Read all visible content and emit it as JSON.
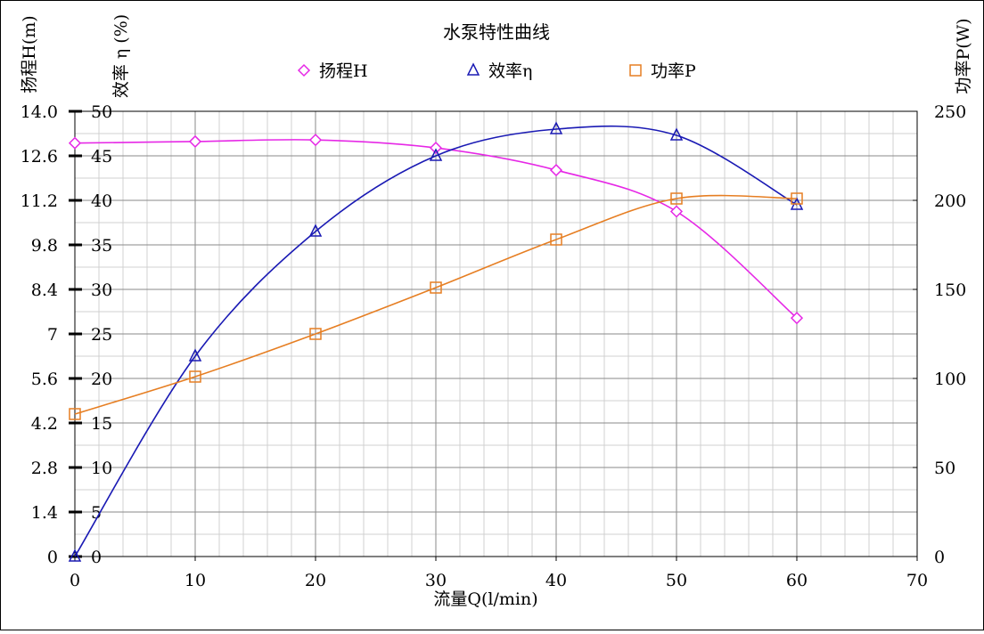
{
  "chart_data": {
    "type": "line",
    "title": "水泵特性曲线",
    "xlabel": "流量Q(l/min)",
    "y_axes": {
      "head": {
        "label": "扬程H(m)",
        "ticks": [
          "0",
          "1.4",
          "2.8",
          "4.2",
          "5.6",
          "7",
          "8.4",
          "9.8",
          "11.2",
          "12.6",
          "14.0"
        ],
        "ylim": [
          0,
          14
        ]
      },
      "efficiency": {
        "label": "效率 η (%)",
        "ticks": [
          "0",
          "5",
          "10",
          "15",
          "20",
          "25",
          "30",
          "35",
          "40",
          "45",
          "50"
        ],
        "ylim": [
          0,
          50
        ]
      },
      "power": {
        "label": "功率P(W)",
        "ticks": [
          "0",
          "50",
          "100",
          "150",
          "200",
          "250"
        ],
        "ylim": [
          0,
          250
        ]
      }
    },
    "x_ticks": [
      "0",
      "10",
      "20",
      "30",
      "40",
      "50",
      "60",
      "70"
    ],
    "xlim": [
      0,
      70
    ],
    "grid": true,
    "legend_position": "top",
    "series": [
      {
        "name": "扬程H",
        "axis": "head",
        "marker": "diamond",
        "color": "#E628E6",
        "x": [
          0,
          10,
          20,
          30,
          40,
          50,
          60
        ],
        "y": [
          13.0,
          13.05,
          13.1,
          12.85,
          12.15,
          10.85,
          7.5
        ]
      },
      {
        "name": "效率η",
        "axis": "efficiency",
        "marker": "triangle",
        "color": "#1A1AB4",
        "x": [
          0,
          10,
          20,
          30,
          40,
          50,
          60
        ],
        "y": [
          0,
          22.5,
          36.5,
          45,
          48,
          47.3,
          39.5
        ]
      },
      {
        "name": "功率P",
        "axis": "power",
        "marker": "square",
        "color": "#E67E22",
        "x": [
          0,
          10,
          20,
          30,
          40,
          50,
          60
        ],
        "y": [
          80,
          101,
          125,
          151,
          178,
          201,
          201
        ]
      }
    ]
  }
}
